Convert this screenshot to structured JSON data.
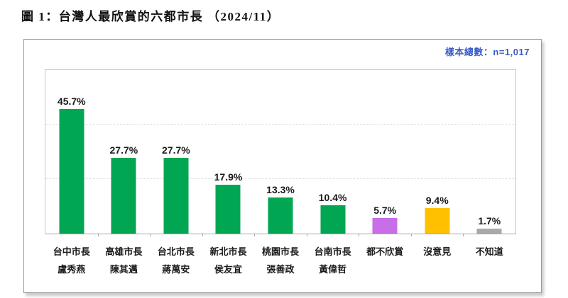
{
  "figure_title": "圖 1：台灣人最欣賞的六都市長 （2024/11）",
  "sample_note": "樣本總數：n=1,017",
  "palette": {
    "bar_green": "#00a651",
    "bar_purple": "#c86ee9",
    "bar_orange": "#ffc000",
    "bar_gray": "#a9a9a9",
    "note_blue": "#3a5bc7"
  },
  "chart_data": {
    "type": "bar",
    "title": "圖 1：台灣人最欣賞的六都市長 （2024/11）",
    "annotation": "樣本總數：n=1,017",
    "categories": [
      [
        "台中市長",
        "盧秀燕"
      ],
      [
        "高雄市長",
        "陳其邁"
      ],
      [
        "台北市長",
        "蔣萬安"
      ],
      [
        "新北市長",
        "侯友宜"
      ],
      [
        "桃園市長",
        "張善政"
      ],
      [
        "台南市長",
        "黃偉哲"
      ],
      [
        "都不欣賞"
      ],
      [
        "沒意見"
      ],
      [
        "不知道"
      ]
    ],
    "values": [
      45.7,
      27.7,
      27.7,
      17.9,
      13.3,
      10.4,
      5.7,
      9.4,
      1.7
    ],
    "value_labels": [
      "45.7%",
      "27.7%",
      "27.7%",
      "17.9%",
      "13.3%",
      "10.4%",
      "5.7%",
      "9.4%",
      "1.7%"
    ],
    "colors": [
      "#00a651",
      "#00a651",
      "#00a651",
      "#00a651",
      "#00a651",
      "#00a651",
      "#c86ee9",
      "#ffc000",
      "#a9a9a9"
    ],
    "xlabel": "",
    "ylabel": "",
    "ylim": [
      0,
      60
    ],
    "gridlines": [
      20,
      40
    ],
    "grid_style": "dotted-horizontal",
    "legend": "none"
  }
}
